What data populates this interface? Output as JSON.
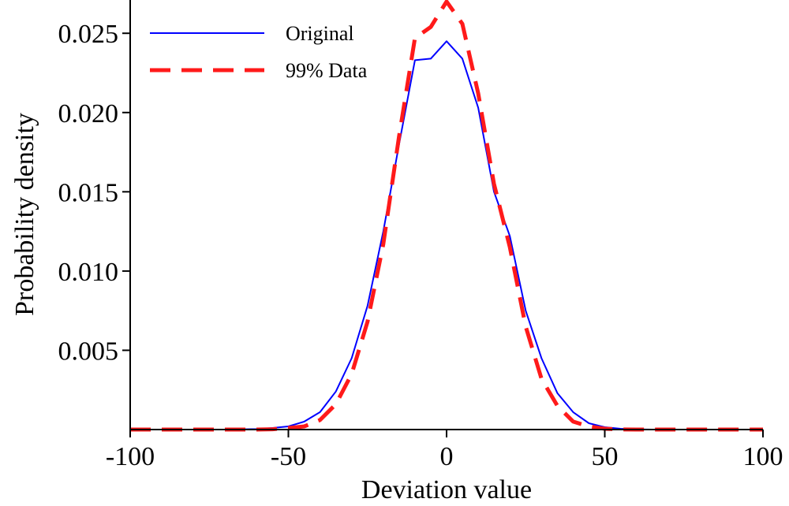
{
  "chart_data": {
    "type": "line",
    "title": "",
    "xlabel": "Deviation value",
    "ylabel": "Probability density",
    "xlim": [
      -100,
      100
    ],
    "ylim": [
      0,
      0.027
    ],
    "xticks": [
      -100,
      -50,
      0,
      50,
      100
    ],
    "xtick_labels": [
      "-100",
      "-50",
      "0",
      "50",
      "100"
    ],
    "yticks": [
      0.005,
      0.01,
      0.015,
      0.02,
      0.025
    ],
    "ytick_labels": [
      "0.005",
      "0.010",
      "0.015",
      "0.020",
      "0.025"
    ],
    "grid": false,
    "legend_position": "top-left",
    "x": [
      -100,
      -95,
      -90,
      -85,
      -80,
      -75,
      -70,
      -65,
      -60,
      -55,
      -50,
      -45,
      -40,
      -35,
      -30,
      -25,
      -20,
      -15,
      -10,
      -5,
      0,
      5,
      10,
      15,
      20,
      25,
      30,
      35,
      40,
      45,
      50,
      55,
      60,
      65,
      70,
      75,
      80,
      85,
      90,
      95,
      100
    ],
    "series": [
      {
        "name": "Original",
        "color": "#0000ff",
        "style": "solid",
        "values": [
          0,
          0,
          0,
          0,
          0,
          0,
          0,
          1e-05,
          3e-05,
          0.0001,
          0.0002,
          0.0005,
          0.0011,
          0.0024,
          0.0045,
          0.0078,
          0.0125,
          0.018,
          0.0233,
          0.0234,
          0.0245,
          0.0234,
          0.0203,
          0.015,
          0.0122,
          0.0075,
          0.0045,
          0.0023,
          0.0011,
          0.0004,
          0.00015,
          5e-05,
          1e-05,
          0,
          0,
          0,
          0,
          0,
          0,
          0,
          0
        ]
      },
      {
        "name": "99% Data",
        "color": "#ff1a1a",
        "style": "dashed",
        "values": [
          0,
          0,
          0,
          0,
          0,
          0,
          0,
          0,
          0,
          2e-05,
          0.0001,
          0.0002,
          0.0006,
          0.0016,
          0.0035,
          0.0068,
          0.0117,
          0.0185,
          0.0247,
          0.0254,
          0.027,
          0.0256,
          0.0212,
          0.0155,
          0.0115,
          0.0065,
          0.0032,
          0.0015,
          0.0005,
          0.0002,
          5e-05,
          1e-05,
          0,
          0,
          0,
          0,
          0,
          0,
          0,
          0,
          0
        ]
      }
    ]
  }
}
